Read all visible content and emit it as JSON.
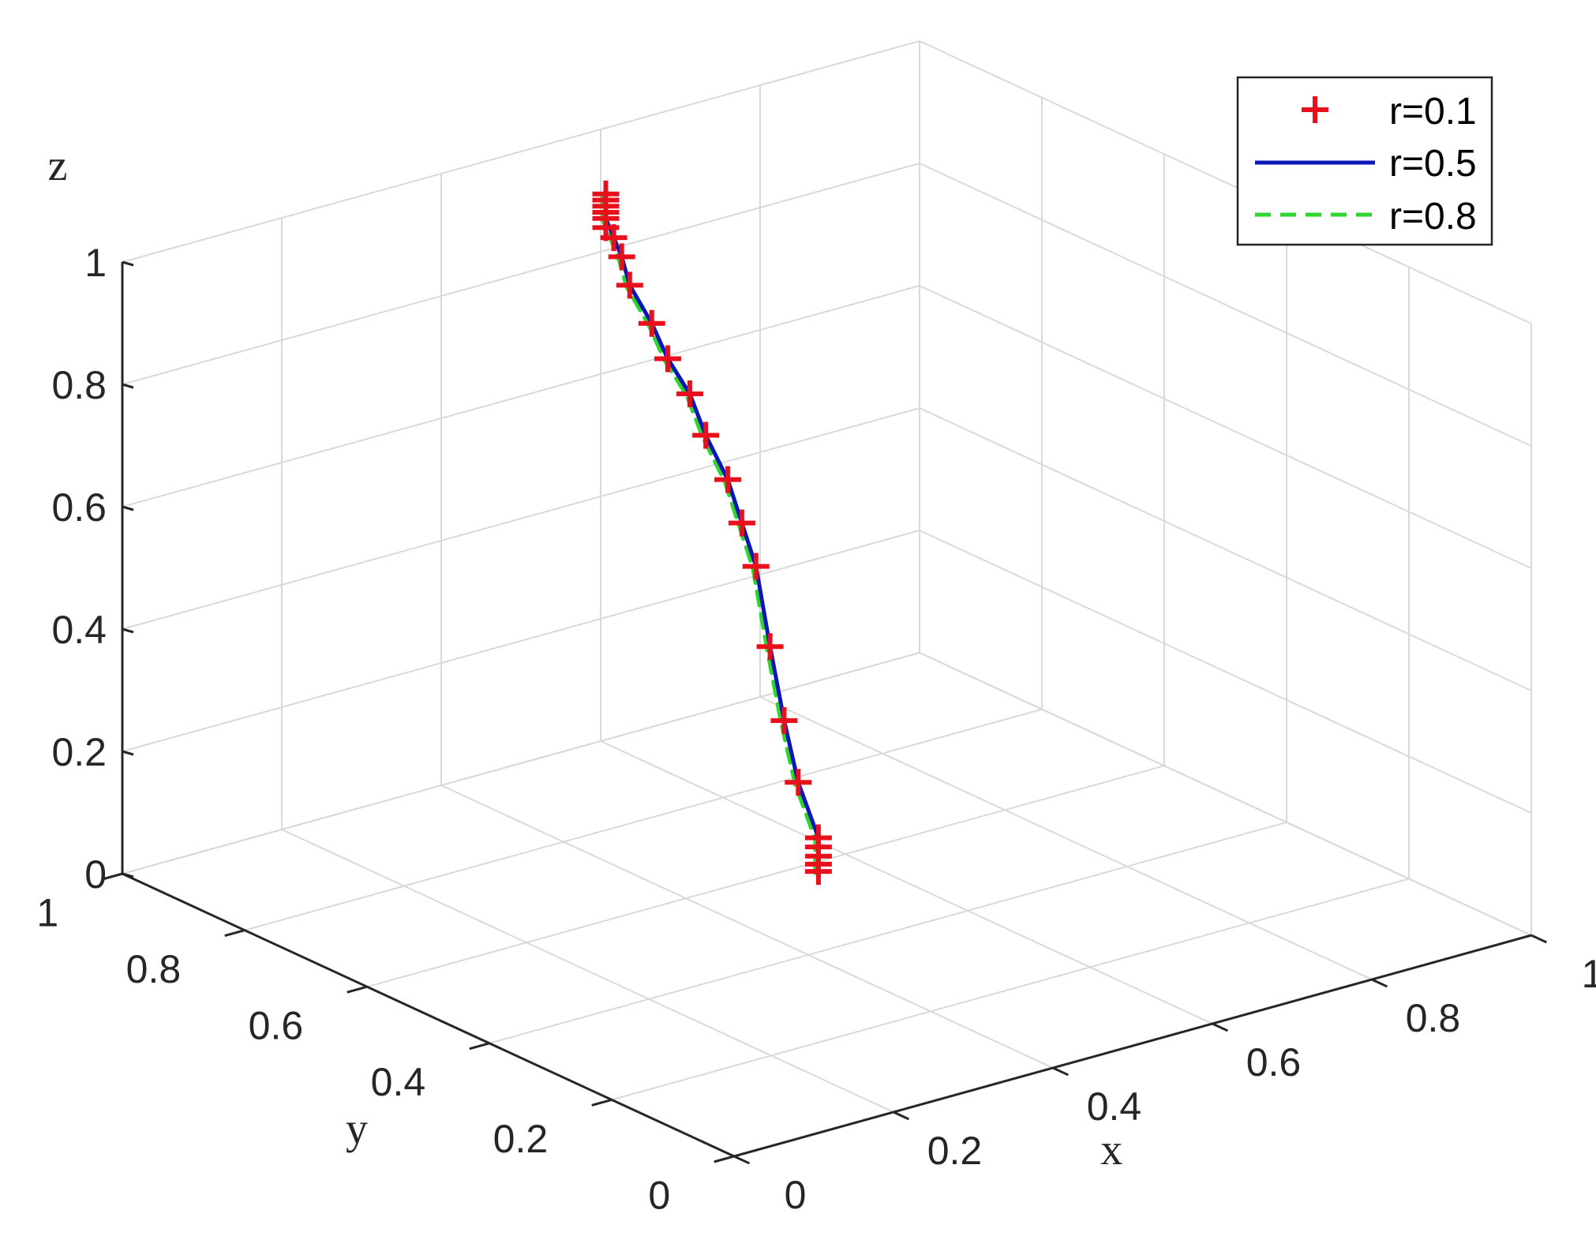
{
  "chart_data": {
    "type": "line3d",
    "xlabel": "x",
    "ylabel": "y",
    "zlabel": "z",
    "xlim": [
      0,
      1
    ],
    "ylim": [
      0,
      1
    ],
    "zlim": [
      0,
      1
    ],
    "x_ticks": [
      "0",
      "0.2",
      "0.4",
      "0.6",
      "0.8",
      "1"
    ],
    "y_ticks": [
      "0",
      "0.2",
      "0.4",
      "0.6",
      "0.8",
      "1"
    ],
    "z_ticks": [
      "0",
      "0.2",
      "0.4",
      "0.6",
      "0.8",
      "1"
    ],
    "grid": true,
    "legend_position": "top-right",
    "colors": {
      "r01": "#e8101a",
      "r05": "#0a16b5",
      "r08": "#2fd62f",
      "grid": "#d9d9d9",
      "axis": "#262626"
    },
    "series": [
      {
        "name": "r=0.1",
        "style": "markers-plus",
        "points": [
          [
            0.29,
            0.24,
            0.25
          ],
          [
            0.29,
            0.24,
            0.262
          ],
          [
            0.29,
            0.24,
            0.275
          ],
          [
            0.29,
            0.24,
            0.29
          ],
          [
            0.29,
            0.24,
            0.305
          ],
          [
            0.28,
            0.26,
            0.39
          ],
          [
            0.27,
            0.27,
            0.49
          ],
          [
            0.26,
            0.28,
            0.61
          ],
          [
            0.25,
            0.29,
            0.74
          ],
          [
            0.24,
            0.3,
            0.81
          ],
          [
            0.23,
            0.31,
            0.88
          ],
          [
            0.21,
            0.32,
            0.955
          ],
          [
            0.19,
            0.32,
            1.03
          ],
          [
            0.17,
            0.33,
            1.09
          ],
          [
            0.15,
            0.33,
            1.155
          ],
          [
            0.13,
            0.34,
            1.22
          ],
          [
            0.12,
            0.34,
            1.27
          ],
          [
            0.11,
            0.34,
            1.305
          ],
          [
            0.1,
            0.34,
            1.325
          ],
          [
            0.1,
            0.34,
            1.34
          ],
          [
            0.1,
            0.34,
            1.35
          ],
          [
            0.1,
            0.34,
            1.36
          ],
          [
            0.1,
            0.34,
            1.37
          ],
          [
            0.1,
            0.34,
            1.38
          ]
        ]
      },
      {
        "name": "r=0.5",
        "style": "solid",
        "points": [
          [
            0.29,
            0.24,
            0.25
          ],
          [
            0.29,
            0.24,
            0.305
          ],
          [
            0.28,
            0.26,
            0.39
          ],
          [
            0.27,
            0.27,
            0.49
          ],
          [
            0.26,
            0.28,
            0.61
          ],
          [
            0.25,
            0.29,
            0.74
          ],
          [
            0.24,
            0.3,
            0.81
          ],
          [
            0.23,
            0.31,
            0.88
          ],
          [
            0.21,
            0.32,
            0.955
          ],
          [
            0.19,
            0.32,
            1.03
          ],
          [
            0.17,
            0.33,
            1.09
          ],
          [
            0.15,
            0.33,
            1.155
          ],
          [
            0.13,
            0.34,
            1.22
          ],
          [
            0.12,
            0.34,
            1.27
          ],
          [
            0.11,
            0.34,
            1.305
          ],
          [
            0.1,
            0.34,
            1.34
          ],
          [
            0.1,
            0.34,
            1.38
          ]
        ]
      },
      {
        "name": "r=0.8",
        "style": "dashed",
        "points": [
          [
            0.29,
            0.24,
            0.25
          ],
          [
            0.29,
            0.24,
            0.305
          ],
          [
            0.28,
            0.26,
            0.39
          ],
          [
            0.27,
            0.27,
            0.49
          ],
          [
            0.26,
            0.28,
            0.61
          ],
          [
            0.25,
            0.29,
            0.74
          ],
          [
            0.24,
            0.3,
            0.81
          ],
          [
            0.23,
            0.31,
            0.88
          ],
          [
            0.21,
            0.32,
            0.955
          ],
          [
            0.19,
            0.32,
            1.03
          ],
          [
            0.17,
            0.33,
            1.09
          ],
          [
            0.15,
            0.33,
            1.155
          ],
          [
            0.13,
            0.34,
            1.22
          ],
          [
            0.12,
            0.34,
            1.27
          ],
          [
            0.11,
            0.34,
            1.305
          ],
          [
            0.1,
            0.34,
            1.34
          ],
          [
            0.1,
            0.34,
            1.38
          ]
        ]
      }
    ]
  }
}
